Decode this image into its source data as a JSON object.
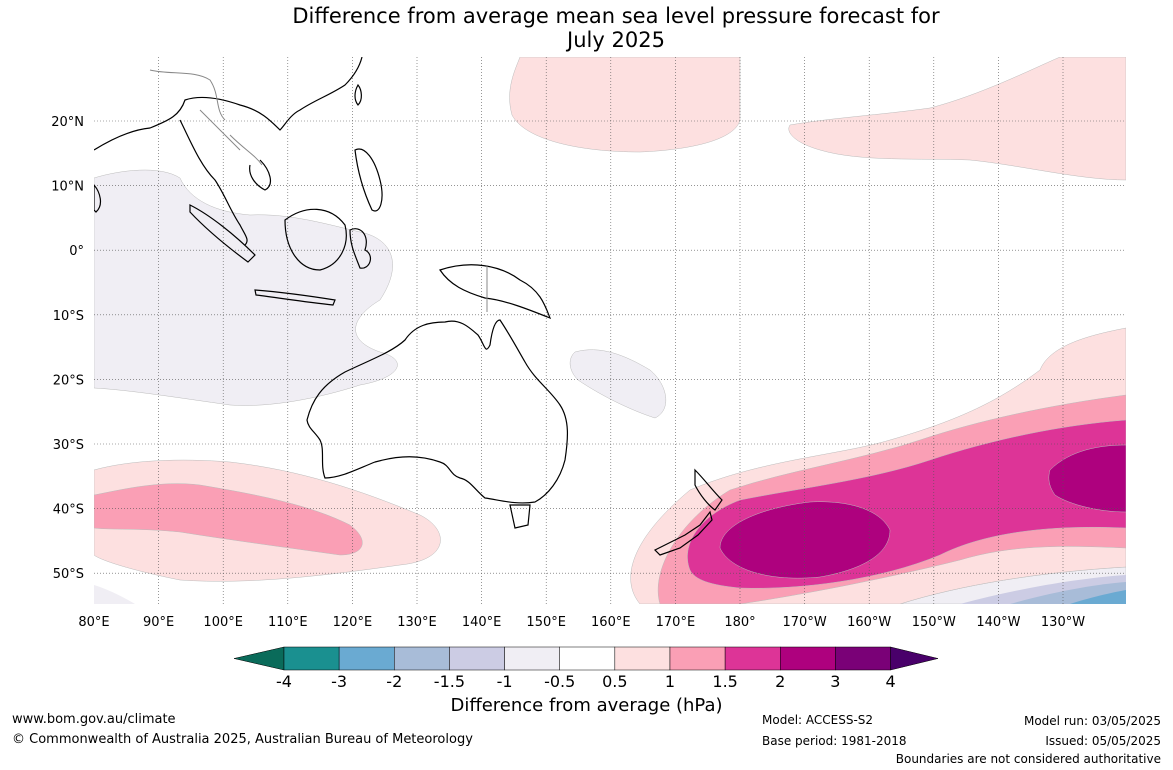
{
  "title_line1": "Difference from average mean sea level pressure forecast for",
  "title_line2": "July 2025",
  "lat_labels": [
    "20°N",
    "10°N",
    "0°",
    "10°S",
    "20°S",
    "30°S",
    "40°S",
    "50°S"
  ],
  "lon_labels": [
    "80°E",
    "90°E",
    "100°E",
    "110°E",
    "120°E",
    "130°E",
    "140°E",
    "150°E",
    "160°E",
    "170°E",
    "180°",
    "170°W",
    "160°W",
    "150°W",
    "140°W",
    "130°W"
  ],
  "colorbar": {
    "label": "Difference from average (hPa)",
    "ticks": [
      "-4",
      "-3",
      "-2",
      "-1.5",
      "-1",
      "-0.5",
      "0.5",
      "1",
      "1.5",
      "2",
      "3",
      "4"
    ],
    "colors": {
      "below_-4": "#0a6b5a",
      "-4_-3": "#1a9090",
      "-3_-2": "#6aaad2",
      "-2_-1.5": "#a8bcd8",
      "-1.5_-1": "#cccce4",
      "-1_-0.5": "#f0eef4",
      "-0.5_0.5": "#ffffff",
      "0.5_1": "#fde0e0",
      "1_1.5": "#fa9fb5",
      "1.5_2": "#dd3497",
      "2_3": "#ae017e",
      "3_4": "#7a0177",
      "above_4": "#49006a"
    }
  },
  "footer": {
    "website": "www.bom.gov.au/climate",
    "copyright": "© Commonwealth of Australia 2025, Australian Bureau of Meteorology",
    "model": "Model: ACCESS-S2",
    "base_period": "Base period: 1981-2018",
    "model_run": "Model run: 03/05/2025",
    "issued": "Issued: 05/05/2025",
    "disclaimer": "Boundaries are not considered authoritative"
  }
}
